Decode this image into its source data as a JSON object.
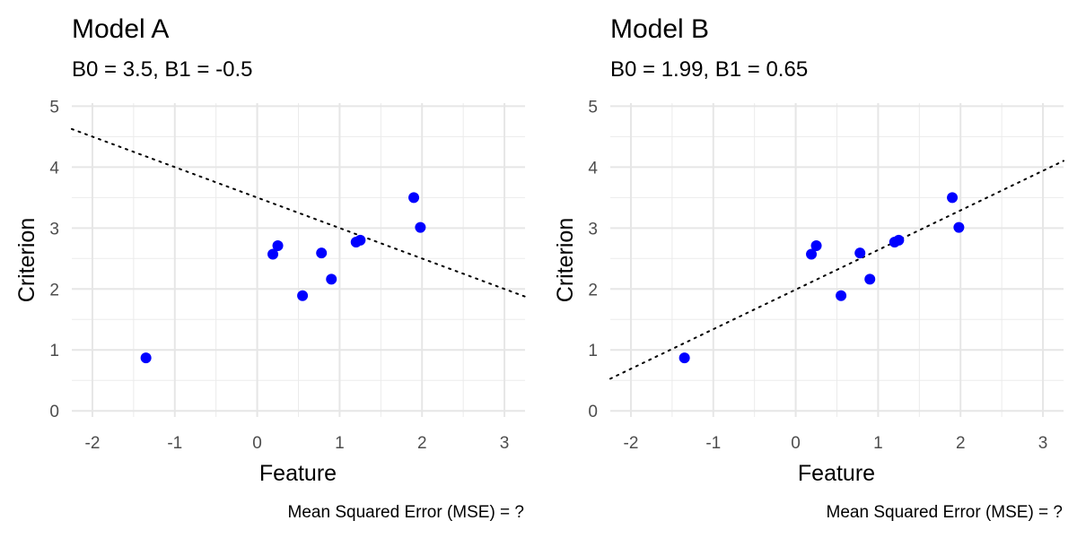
{
  "chart_data": [
    {
      "type": "scatter",
      "title": "Model A",
      "subtitle": "B0 = 3.5, B1 = -0.5",
      "xlabel": "Feature",
      "ylabel": "Criterion",
      "caption": "Mean Squared Error (MSE) = ?",
      "xlim": [
        -2.25,
        3.25
      ],
      "ylim": [
        -0.1,
        5.05
      ],
      "x_ticks": [
        -2,
        -1,
        0,
        1,
        2,
        3
      ],
      "y_ticks": [
        0,
        1,
        2,
        3,
        4,
        5
      ],
      "grid": true,
      "point_color": "#0000ff",
      "points": [
        {
          "x": -1.35,
          "y": 0.87
        },
        {
          "x": 0.19,
          "y": 2.57
        },
        {
          "x": 0.25,
          "y": 2.71
        },
        {
          "x": 0.55,
          "y": 1.89
        },
        {
          "x": 0.78,
          "y": 2.59
        },
        {
          "x": 0.9,
          "y": 2.16
        },
        {
          "x": 1.2,
          "y": 2.77
        },
        {
          "x": 1.25,
          "y": 2.8
        },
        {
          "x": 1.9,
          "y": 3.5
        },
        {
          "x": 1.98,
          "y": 3.01
        }
      ],
      "line": {
        "intercept": 3.5,
        "slope": -0.5,
        "style": "dotted"
      }
    },
    {
      "type": "scatter",
      "title": "Model B",
      "subtitle": "B0 = 1.99, B1 = 0.65",
      "xlabel": "Feature",
      "ylabel": "Criterion",
      "caption": "Mean Squared Error (MSE) = ?",
      "xlim": [
        -2.25,
        3.25
      ],
      "ylim": [
        -0.1,
        5.05
      ],
      "x_ticks": [
        -2,
        -1,
        0,
        1,
        2,
        3
      ],
      "y_ticks": [
        0,
        1,
        2,
        3,
        4,
        5
      ],
      "grid": true,
      "point_color": "#0000ff",
      "points": [
        {
          "x": -1.35,
          "y": 0.87
        },
        {
          "x": 0.19,
          "y": 2.57
        },
        {
          "x": 0.25,
          "y": 2.71
        },
        {
          "x": 0.55,
          "y": 1.89
        },
        {
          "x": 0.78,
          "y": 2.59
        },
        {
          "x": 0.9,
          "y": 2.16
        },
        {
          "x": 1.2,
          "y": 2.77
        },
        {
          "x": 1.25,
          "y": 2.8
        },
        {
          "x": 1.9,
          "y": 3.5
        },
        {
          "x": 1.98,
          "y": 3.01
        }
      ],
      "line": {
        "intercept": 1.99,
        "slope": 0.65,
        "style": "dotted"
      }
    }
  ]
}
